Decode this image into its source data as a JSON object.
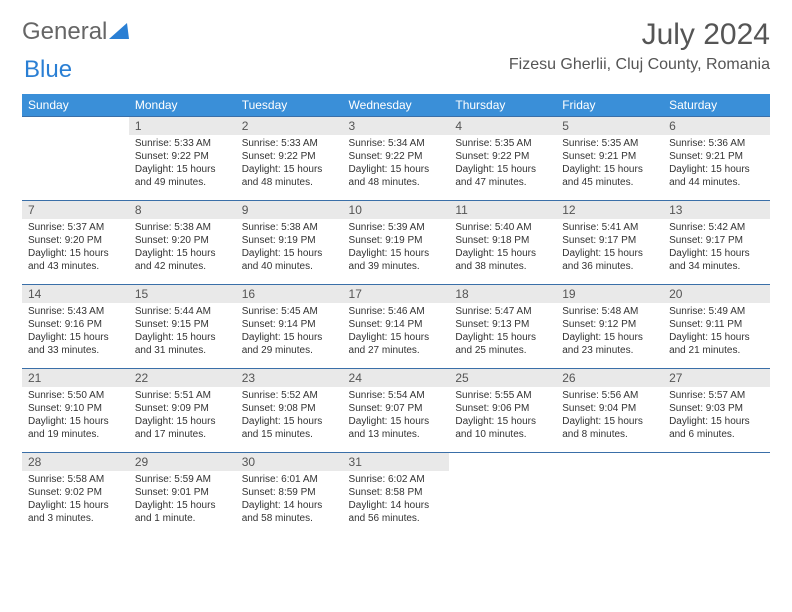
{
  "brand": {
    "part1": "General",
    "part2": "Blue"
  },
  "title": {
    "month": "July 2024",
    "location": "Fizesu Gherlii, Cluj County, Romania"
  },
  "colors": {
    "header_bg": "#3a8fd8",
    "border": "#3a6fa8",
    "daybar": "#e9e9e9"
  },
  "daynames": [
    "Sunday",
    "Monday",
    "Tuesday",
    "Wednesday",
    "Thursday",
    "Friday",
    "Saturday"
  ],
  "weeks": [
    [
      null,
      {
        "n": "1",
        "sr": "5:33 AM",
        "ss": "9:22 PM",
        "dl": "15 hours and 49 minutes."
      },
      {
        "n": "2",
        "sr": "5:33 AM",
        "ss": "9:22 PM",
        "dl": "15 hours and 48 minutes."
      },
      {
        "n": "3",
        "sr": "5:34 AM",
        "ss": "9:22 PM",
        "dl": "15 hours and 48 minutes."
      },
      {
        "n": "4",
        "sr": "5:35 AM",
        "ss": "9:22 PM",
        "dl": "15 hours and 47 minutes."
      },
      {
        "n": "5",
        "sr": "5:35 AM",
        "ss": "9:21 PM",
        "dl": "15 hours and 45 minutes."
      },
      {
        "n": "6",
        "sr": "5:36 AM",
        "ss": "9:21 PM",
        "dl": "15 hours and 44 minutes."
      }
    ],
    [
      {
        "n": "7",
        "sr": "5:37 AM",
        "ss": "9:20 PM",
        "dl": "15 hours and 43 minutes."
      },
      {
        "n": "8",
        "sr": "5:38 AM",
        "ss": "9:20 PM",
        "dl": "15 hours and 42 minutes."
      },
      {
        "n": "9",
        "sr": "5:38 AM",
        "ss": "9:19 PM",
        "dl": "15 hours and 40 minutes."
      },
      {
        "n": "10",
        "sr": "5:39 AM",
        "ss": "9:19 PM",
        "dl": "15 hours and 39 minutes."
      },
      {
        "n": "11",
        "sr": "5:40 AM",
        "ss": "9:18 PM",
        "dl": "15 hours and 38 minutes."
      },
      {
        "n": "12",
        "sr": "5:41 AM",
        "ss": "9:17 PM",
        "dl": "15 hours and 36 minutes."
      },
      {
        "n": "13",
        "sr": "5:42 AM",
        "ss": "9:17 PM",
        "dl": "15 hours and 34 minutes."
      }
    ],
    [
      {
        "n": "14",
        "sr": "5:43 AM",
        "ss": "9:16 PM",
        "dl": "15 hours and 33 minutes."
      },
      {
        "n": "15",
        "sr": "5:44 AM",
        "ss": "9:15 PM",
        "dl": "15 hours and 31 minutes."
      },
      {
        "n": "16",
        "sr": "5:45 AM",
        "ss": "9:14 PM",
        "dl": "15 hours and 29 minutes."
      },
      {
        "n": "17",
        "sr": "5:46 AM",
        "ss": "9:14 PM",
        "dl": "15 hours and 27 minutes."
      },
      {
        "n": "18",
        "sr": "5:47 AM",
        "ss": "9:13 PM",
        "dl": "15 hours and 25 minutes."
      },
      {
        "n": "19",
        "sr": "5:48 AM",
        "ss": "9:12 PM",
        "dl": "15 hours and 23 minutes."
      },
      {
        "n": "20",
        "sr": "5:49 AM",
        "ss": "9:11 PM",
        "dl": "15 hours and 21 minutes."
      }
    ],
    [
      {
        "n": "21",
        "sr": "5:50 AM",
        "ss": "9:10 PM",
        "dl": "15 hours and 19 minutes."
      },
      {
        "n": "22",
        "sr": "5:51 AM",
        "ss": "9:09 PM",
        "dl": "15 hours and 17 minutes."
      },
      {
        "n": "23",
        "sr": "5:52 AM",
        "ss": "9:08 PM",
        "dl": "15 hours and 15 minutes."
      },
      {
        "n": "24",
        "sr": "5:54 AM",
        "ss": "9:07 PM",
        "dl": "15 hours and 13 minutes."
      },
      {
        "n": "25",
        "sr": "5:55 AM",
        "ss": "9:06 PM",
        "dl": "15 hours and 10 minutes."
      },
      {
        "n": "26",
        "sr": "5:56 AM",
        "ss": "9:04 PM",
        "dl": "15 hours and 8 minutes."
      },
      {
        "n": "27",
        "sr": "5:57 AM",
        "ss": "9:03 PM",
        "dl": "15 hours and 6 minutes."
      }
    ],
    [
      {
        "n": "28",
        "sr": "5:58 AM",
        "ss": "9:02 PM",
        "dl": "15 hours and 3 minutes."
      },
      {
        "n": "29",
        "sr": "5:59 AM",
        "ss": "9:01 PM",
        "dl": "15 hours and 1 minute."
      },
      {
        "n": "30",
        "sr": "6:01 AM",
        "ss": "8:59 PM",
        "dl": "14 hours and 58 minutes."
      },
      {
        "n": "31",
        "sr": "6:02 AM",
        "ss": "8:58 PM",
        "dl": "14 hours and 56 minutes."
      },
      null,
      null,
      null
    ]
  ],
  "labels": {
    "sunrise": "Sunrise:",
    "sunset": "Sunset:",
    "daylight": "Daylight:"
  }
}
